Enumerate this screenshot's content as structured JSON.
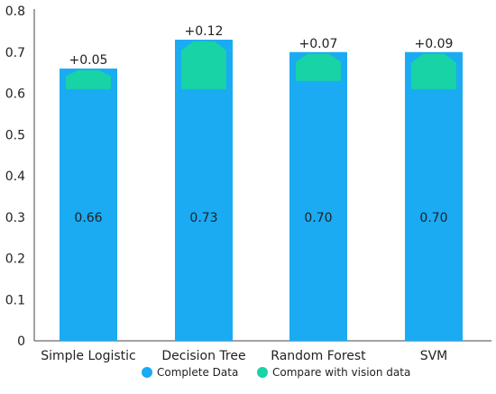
{
  "chart_data": {
    "type": "bar",
    "categories": [
      "Simple Logistic",
      "Decision Tree",
      "Random Forest",
      "SVM"
    ],
    "series": [
      {
        "name": "Complete Data",
        "values": [
          0.66,
          0.73,
          0.7,
          0.7
        ],
        "labels": [
          "0.66",
          "0.73",
          "0.70",
          "0.70"
        ]
      },
      {
        "name": "Compare with vision data",
        "values": [
          0.05,
          0.12,
          0.07,
          0.09
        ],
        "labels": [
          "+0.05",
          "+0.12",
          "+0.07",
          "+0.09"
        ]
      }
    ],
    "yticks": [
      "0",
      "0.1",
      "0.2",
      "0.3",
      "0.4",
      "0.5",
      "0.6",
      "0.7",
      "0.8"
    ],
    "ylim": [
      0,
      0.8
    ],
    "legend_position": "bottom",
    "colors": {
      "complete": "#1AABF3",
      "vision": "#17D3A5",
      "axis": "#444444"
    }
  }
}
